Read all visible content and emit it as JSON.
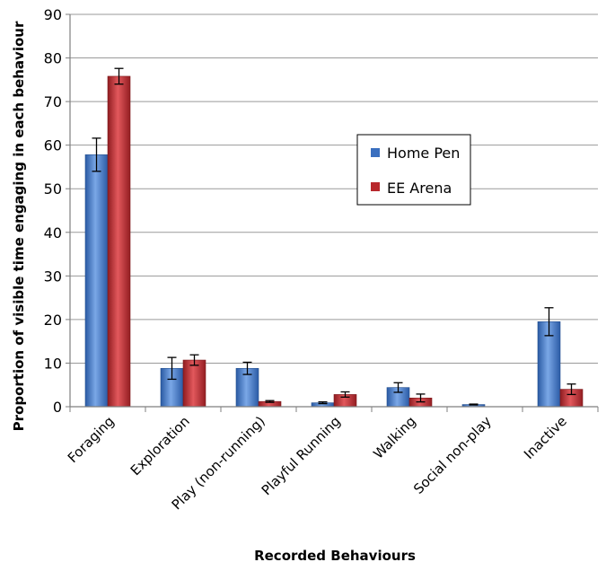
{
  "chart_data": {
    "type": "bar",
    "title": "",
    "xlabel": "Recorded Behaviours",
    "ylabel": "Proportion of visible time engaging in each behaviour",
    "ylim": [
      0,
      90
    ],
    "yticks": [
      0,
      10,
      20,
      30,
      40,
      50,
      60,
      70,
      80,
      90
    ],
    "grid": true,
    "legend_position": "middle-right",
    "categories": [
      "Foraging",
      "Exploration",
      "Play (non-running)",
      "Playful Running",
      "Walking",
      "Social non-play",
      "Inactive"
    ],
    "series": [
      {
        "name": "Home Pen",
        "color": "#3a6fbf",
        "values": [
          57.8,
          8.8,
          8.8,
          0.9,
          4.4,
          0.5,
          19.5
        ],
        "errors": [
          3.8,
          2.5,
          1.4,
          0.2,
          1.1,
          0.1,
          3.2
        ]
      },
      {
        "name": "EE Arena",
        "color": "#b8282c",
        "values": [
          75.8,
          10.7,
          1.2,
          2.8,
          2.0,
          0.0,
          4.0
        ],
        "errors": [
          1.8,
          1.2,
          0.2,
          0.6,
          0.9,
          0.0,
          1.2
        ]
      }
    ]
  }
}
